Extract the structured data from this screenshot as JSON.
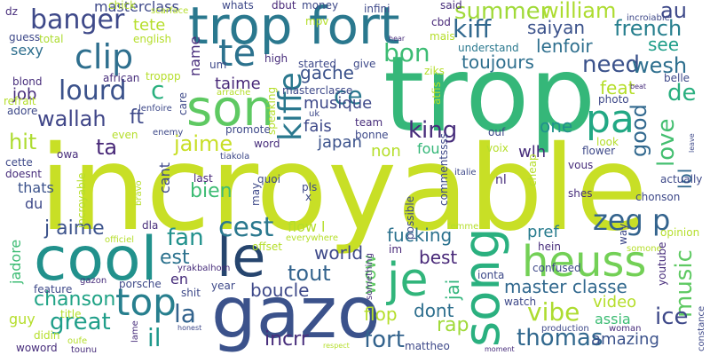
{
  "words": [
    {
      "text": "incroyable",
      "color": "#c8df26"
    },
    {
      "text": "trop",
      "color": "#35b779"
    },
    {
      "text": "gazo",
      "color": "#3b528b"
    },
    {
      "text": "trop fort",
      "color": "#2a788e"
    },
    {
      "text": "cool",
      "color": "#21918c"
    },
    {
      "text": "le",
      "color": "#26456e"
    },
    {
      "text": "son",
      "color": "#5ec962"
    },
    {
      "text": "song",
      "color": "#2ab07f"
    },
    {
      "text": "heuss",
      "color": "#73d056"
    },
    {
      "text": "je",
      "color": "#31b57b"
    },
    {
      "text": "pa",
      "color": "#22a884"
    },
    {
      "text": "top",
      "color": "#277f8e"
    },
    {
      "text": "te",
      "color": "#2c728e"
    },
    {
      "text": "clip",
      "color": "#2e6f8e"
    },
    {
      "text": "banger",
      "color": "#3e4989"
    },
    {
      "text": "cest",
      "color": "#2a788e"
    },
    {
      "text": "lourd",
      "color": "#3b528b"
    },
    {
      "text": "wallah",
      "color": "#404688"
    },
    {
      "text": "kiffe",
      "color": "#2a788e"
    },
    {
      "text": "bon",
      "color": "#3dbc74"
    },
    {
      "text": "summer",
      "color": "#a0da39"
    },
    {
      "text": "kiff",
      "color": "#31688e"
    },
    {
      "text": "need",
      "color": "#3b528b"
    },
    {
      "text": "french",
      "color": "#277f8e"
    },
    {
      "text": "wesh",
      "color": "#2e6f8e"
    },
    {
      "text": "music",
      "color": "#5ec962"
    },
    {
      "text": "love",
      "color": "#44bf70"
    },
    {
      "text": "good",
      "color": "#31688e"
    },
    {
      "text": "zeg p",
      "color": "#33638d"
    },
    {
      "text": "fan",
      "color": "#21918c"
    },
    {
      "text": "il",
      "color": "#1f988b"
    },
    {
      "text": "la",
      "color": "#33638d"
    },
    {
      "text": "great",
      "color": "#1f9e89"
    },
    {
      "text": "chanson",
      "color": "#20a386"
    },
    {
      "text": "fort",
      "color": "#33638d"
    },
    {
      "text": "vibe",
      "color": "#addc30"
    },
    {
      "text": "ice",
      "color": "#3e4989"
    },
    {
      "text": "thomas",
      "color": "#31688e"
    },
    {
      "text": "master classe",
      "color": "#31688e"
    },
    {
      "text": "tout",
      "color": "#33638d"
    },
    {
      "text": "world",
      "color": "#3e4989"
    },
    {
      "text": "est",
      "color": "#2c728e"
    },
    {
      "text": "king",
      "color": "#472d7b"
    },
    {
      "text": "ta",
      "color": "#482878"
    },
    {
      "text": "hit",
      "color": "#addc30"
    },
    {
      "text": "j aime",
      "color": "#3b528b"
    },
    {
      "text": "jaime",
      "color": "#c8df26"
    },
    {
      "text": "ce",
      "color": "#2a788e"
    },
    {
      "text": "c",
      "color": "#2ab07f"
    },
    {
      "text": "ft",
      "color": "#3e4989"
    },
    {
      "text": "wow",
      "color": "#5ec962"
    },
    {
      "text": "jai",
      "color": "#31b57b"
    },
    {
      "text": "rap",
      "color": "#a0da39"
    },
    {
      "text": "flop",
      "color": "#b5de2b"
    },
    {
      "text": "dont",
      "color": "#2e6f8e"
    },
    {
      "text": "incrr",
      "color": "#472d7b"
    },
    {
      "text": "boucle",
      "color": "#3e4989"
    },
    {
      "text": "fucking",
      "color": "#2c728e"
    },
    {
      "text": "best",
      "color": "#482878"
    },
    {
      "text": "bien",
      "color": "#3dbc74"
    },
    {
      "text": "lenfoir",
      "color": "#2e6f8e"
    },
    {
      "text": "toujours",
      "color": "#2e6f8e"
    },
    {
      "text": "saiyan",
      "color": "#3b528b"
    },
    {
      "text": "william",
      "color": "#addc30"
    },
    {
      "text": "au",
      "color": "#3e4989"
    },
    {
      "text": "see",
      "color": "#1f9e89"
    },
    {
      "text": "de",
      "color": "#29af7f"
    },
    {
      "text": "feat",
      "color": "#b5de2b"
    },
    {
      "text": "one",
      "color": "#21918c"
    },
    {
      "text": "video",
      "color": "#b5de2b"
    },
    {
      "text": "assia",
      "color": "#3dbc74"
    },
    {
      "text": "amazing",
      "color": "#3b528b"
    },
    {
      "text": "lol",
      "color": "#31688e"
    },
    {
      "text": "non",
      "color": "#b5de2b"
    },
    {
      "text": "fou",
      "color": "#35b779"
    },
    {
      "text": "fais",
      "color": "#3e4989"
    },
    {
      "text": "japan",
      "color": "#3b528b"
    },
    {
      "text": "musique",
      "color": "#3e4989"
    },
    {
      "text": "gache",
      "color": "#3b528b"
    },
    {
      "text": "taime",
      "color": "#482878"
    },
    {
      "text": "name",
      "color": "#472d7b"
    },
    {
      "text": "wlh",
      "color": "#472d7b"
    },
    {
      "text": "pref",
      "color": "#287c8e"
    },
    {
      "text": "flow l",
      "color": "#b5de2b"
    },
    {
      "text": "en",
      "color": "#472d7b"
    },
    {
      "text": "du",
      "color": "#3e4989"
    },
    {
      "text": "thats",
      "color": "#3b528b"
    },
    {
      "text": "cant",
      "color": "#3e4989"
    },
    {
      "text": "last",
      "color": "#482878"
    },
    {
      "text": "job",
      "color": "#472d7b"
    },
    {
      "text": "sexy",
      "color": "#2e6f8e"
    },
    {
      "text": "tete",
      "color": "#b5de2b"
    },
    {
      "text": "masterclass",
      "color": "#3e4989"
    },
    {
      "text": "guy",
      "color": "#b5de2b"
    },
    {
      "text": "jadore",
      "color": "#3dbc74"
    },
    {
      "text": "ouf",
      "color": "#3e4989"
    },
    {
      "text": "im",
      "color": "#482878"
    },
    {
      "text": "chonson",
      "color": "#3e4989"
    },
    {
      "text": "shes",
      "color": "#472d7b"
    },
    {
      "text": "cbd",
      "color": "#482878"
    },
    {
      "text": "said",
      "color": "#472d7b"
    },
    {
      "text": "mais",
      "color": "#b5de2b"
    },
    {
      "text": "understand",
      "color": "#2a788e"
    },
    {
      "text": "incroiable",
      "color": "#3e4989"
    },
    {
      "text": "african",
      "color": "#472d7b"
    },
    {
      "text": "english",
      "color": "#b5de2b"
    },
    {
      "text": "whats",
      "color": "#3e4989"
    },
    {
      "text": "dbut",
      "color": "#482878"
    },
    {
      "text": "money",
      "color": "#3e4989"
    },
    {
      "text": "infini",
      "color": "#3e4989"
    },
    {
      "text": "chick",
      "color": "#b5de2b"
    },
    {
      "text": "scarface",
      "color": "#b5de2b"
    },
    {
      "text": "dz",
      "color": "#472d7b"
    },
    {
      "text": "guess",
      "color": "#3e4989"
    },
    {
      "text": "total",
      "color": "#addc30"
    },
    {
      "text": "mpv",
      "color": "#b5de2b"
    },
    {
      "text": "troppp",
      "color": "#b5de2b"
    },
    {
      "text": "um",
      "color": "#3e4989"
    },
    {
      "text": "high",
      "color": "#472d7b"
    },
    {
      "text": "started",
      "color": "#3e4989"
    },
    {
      "text": "give",
      "color": "#3e4989"
    },
    {
      "text": "ziks",
      "color": "#b5de2b"
    },
    {
      "text": "blond",
      "color": "#472d7b"
    },
    {
      "text": "refrait",
      "color": "#b5de2b"
    },
    {
      "text": "adore",
      "color": "#3e4989"
    },
    {
      "text": "lenfoire",
      "color": "#3e4989"
    },
    {
      "text": "care",
      "color": "#3e4989"
    },
    {
      "text": "arrache",
      "color": "#b5de2b"
    },
    {
      "text": "masterclasse",
      "color": "#3e4989"
    },
    {
      "text": "uk",
      "color": "#3e4989"
    },
    {
      "text": "speaking",
      "color": "#b5de2b"
    },
    {
      "text": "atfis",
      "color": "#b5de2b"
    },
    {
      "text": "team",
      "color": "#472d7b"
    },
    {
      "text": "bonne",
      "color": "#3e4989"
    },
    {
      "text": "promote",
      "color": "#3e4989"
    },
    {
      "text": "word",
      "color": "#472d7b"
    },
    {
      "text": "tiakola",
      "color": "#3e4989"
    },
    {
      "text": "enemy",
      "color": "#3e4989"
    },
    {
      "text": "even",
      "color": "#b5de2b"
    },
    {
      "text": "owa",
      "color": "#472d7b"
    },
    {
      "text": "cette",
      "color": "#3e4989"
    },
    {
      "text": "doesnt",
      "color": "#472d7b"
    },
    {
      "text": "quoi",
      "color": "#3e4989"
    },
    {
      "text": "pls",
      "color": "#3e4989"
    },
    {
      "text": "x",
      "color": "#3e4989"
    },
    {
      "text": "commentssss",
      "color": "#3e4989"
    },
    {
      "text": "voix",
      "color": "#b5de2b"
    },
    {
      "text": "italie",
      "color": "#3e4989"
    },
    {
      "text": "nl",
      "color": "#472d7b"
    },
    {
      "text": "cheap",
      "color": "#b5de2b"
    },
    {
      "text": "possible",
      "color": "#3e4989"
    },
    {
      "text": "may",
      "color": "#3e4989"
    },
    {
      "text": "bravo",
      "color": "#b5de2b"
    },
    {
      "text": "incroyable",
      "color": "#b5de2b"
    },
    {
      "text": "officiel",
      "color": "#b5de2b"
    },
    {
      "text": "dla",
      "color": "#472d7b"
    },
    {
      "text": "everywhere",
      "color": "#b5de2b"
    },
    {
      "text": "offset",
      "color": "#b5de2b"
    },
    {
      "text": "yrakbalhom",
      "color": "#472d7b"
    },
    {
      "text": "femme",
      "color": "#b5de2b"
    },
    {
      "text": "hein",
      "color": "#472d7b"
    },
    {
      "text": "confused",
      "color": "#3e4989"
    },
    {
      "text": "somone",
      "color": "#b5de2b"
    },
    {
      "text": "youtube",
      "color": "#472d7b"
    },
    {
      "text": "opinion",
      "color": "#b5de2b"
    },
    {
      "text": "actually",
      "color": "#3e4989"
    },
    {
      "text": "way",
      "color": "#3e4989"
    },
    {
      "text": "look",
      "color": "#b5de2b"
    },
    {
      "text": "flower",
      "color": "#3e4989"
    },
    {
      "text": "vous",
      "color": "#472d7b"
    },
    {
      "text": "leave",
      "color": "#3e4989"
    },
    {
      "text": "photo",
      "color": "#3e4989"
    },
    {
      "text": "belle",
      "color": "#3e4989"
    },
    {
      "text": "beat",
      "color": "#472d7b"
    },
    {
      "text": "feature",
      "color": "#3e4989"
    },
    {
      "text": "gazon",
      "color": "#472d7b"
    },
    {
      "text": "porsche",
      "color": "#3e4989"
    },
    {
      "text": "shit",
      "color": "#3e4989"
    },
    {
      "text": "year",
      "color": "#3e4989"
    },
    {
      "text": "something",
      "color": "#472d7b"
    },
    {
      "text": "ionta",
      "color": "#3e4989"
    },
    {
      "text": "watch",
      "color": "#3e4989"
    },
    {
      "text": "production",
      "color": "#3e4989"
    },
    {
      "text": "woman",
      "color": "#472d7b"
    },
    {
      "text": "title",
      "color": "#b5de2b"
    },
    {
      "text": "didin",
      "color": "#b5de2b"
    },
    {
      "text": "oufe",
      "color": "#b5de2b"
    },
    {
      "text": "woword",
      "color": "#472d7b"
    },
    {
      "text": "tounu",
      "color": "#472d7b"
    },
    {
      "text": "lame",
      "color": "#472d7b"
    },
    {
      "text": "honest",
      "color": "#3e4989"
    },
    {
      "text": "respect",
      "color": "#b5de2b"
    },
    {
      "text": "mattheo",
      "color": "#3e4989"
    },
    {
      "text": "moment",
      "color": "#472d7b"
    },
    {
      "text": "constance",
      "color": "#3e4989"
    },
    {
      "text": "hear",
      "color": "#472d7b"
    }
  ]
}
